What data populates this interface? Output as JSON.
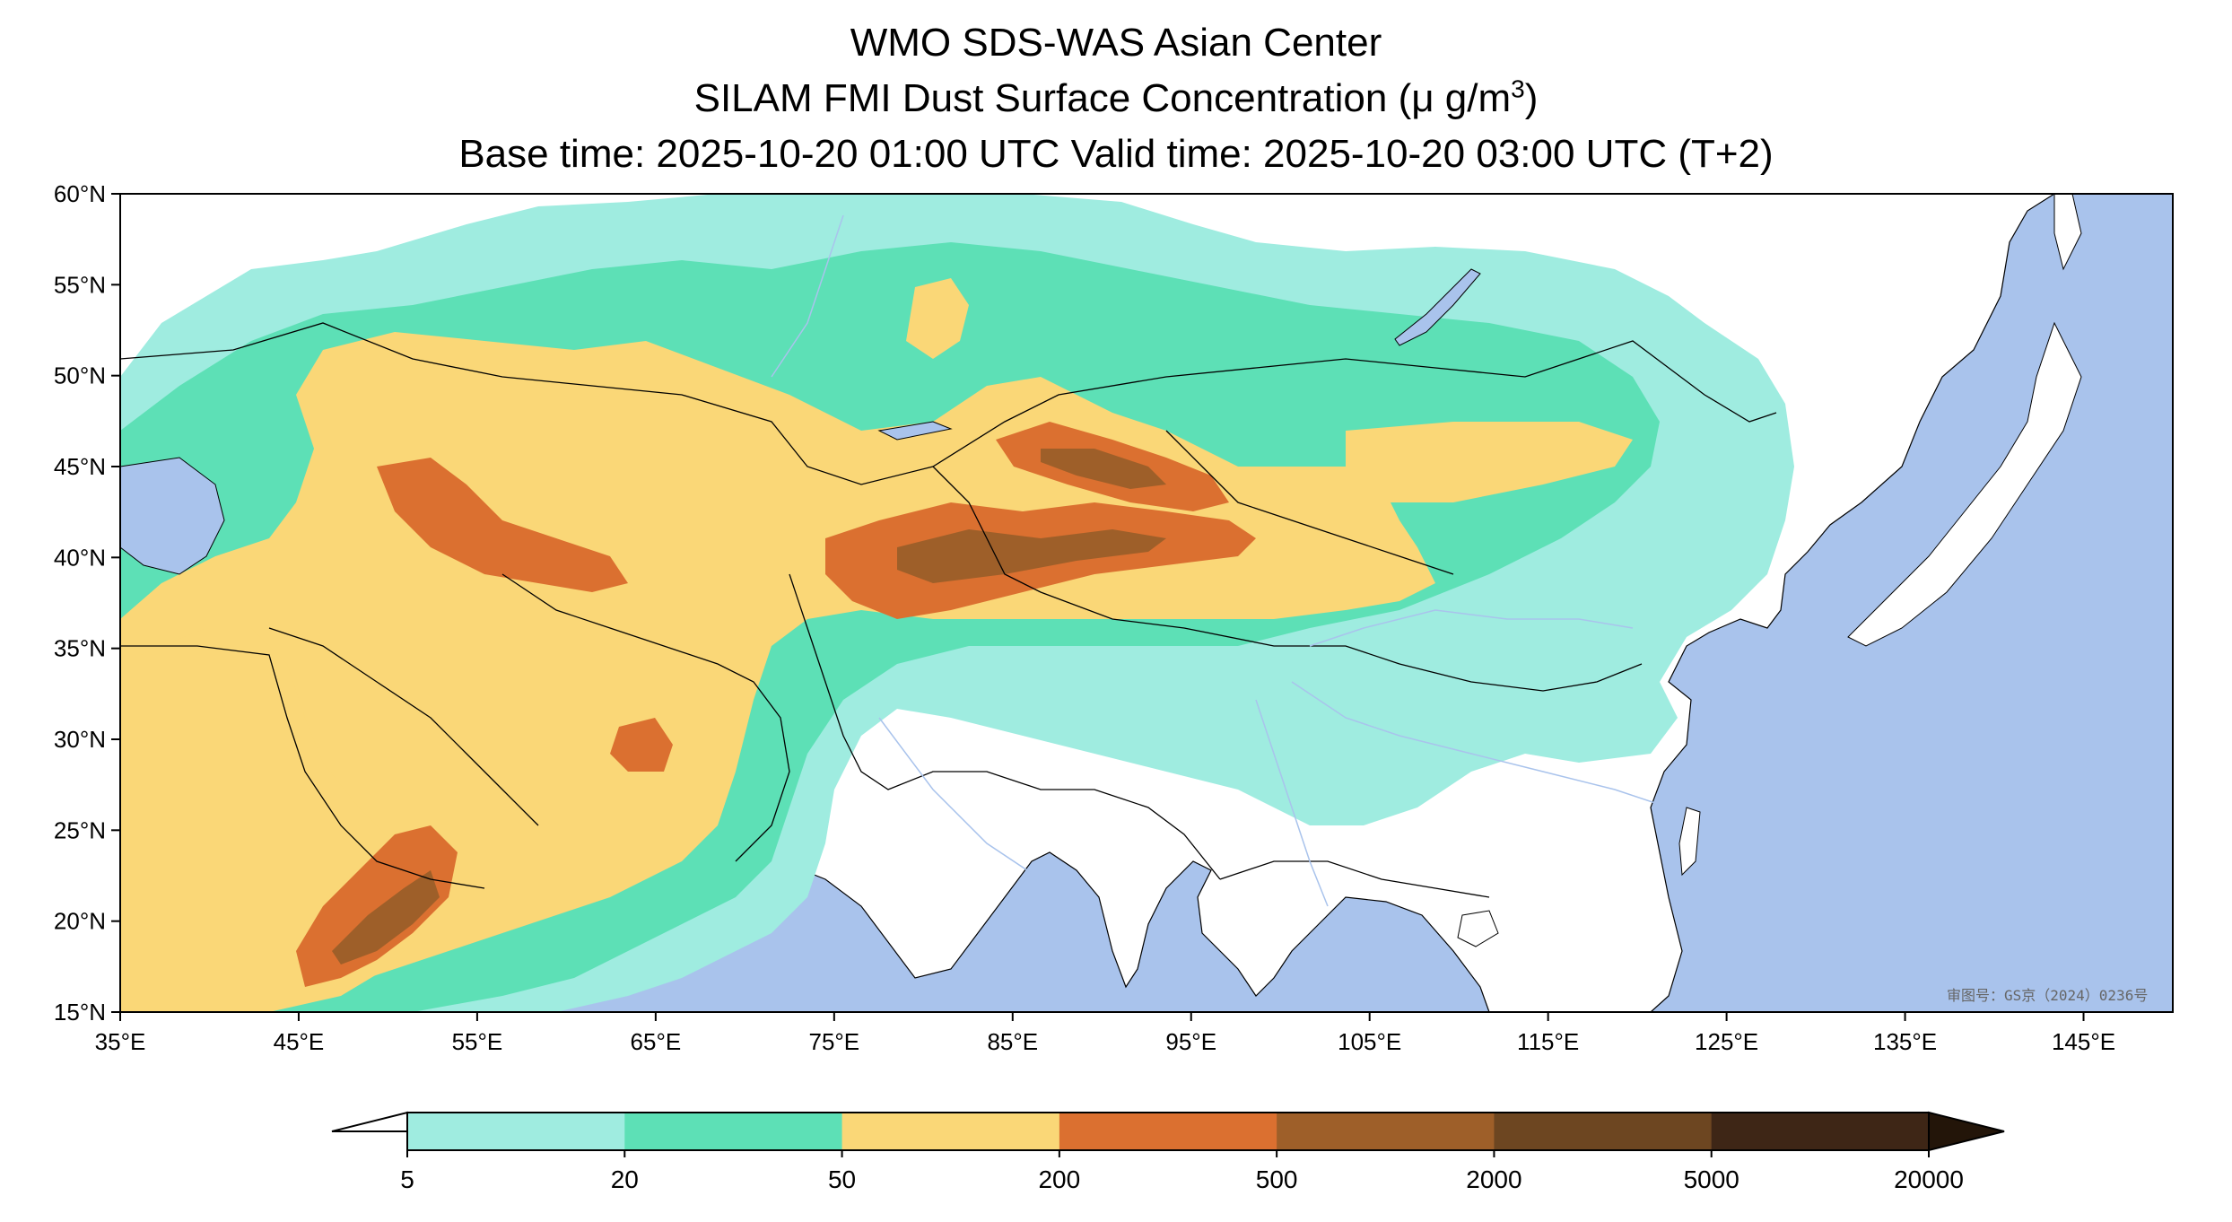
{
  "header": {
    "line1": "WMO SDS-WAS Asian Center",
    "line2_prefix": "SILAM FMI Dust Surface Concentration (",
    "line2_unit": "μ g/m",
    "line2_sup": "3",
    "line2_suffix": ")",
    "line3": "Base time: 2025-10-20 01:00 UTC Valid time: 2025-10-20 03:00 UTC (T+2)"
  },
  "map": {
    "lat_labels": [
      "60°N",
      "55°N",
      "50°N",
      "45°N",
      "40°N",
      "35°N",
      "30°N",
      "25°N",
      "20°N",
      "15°N"
    ],
    "lon_labels": [
      "35°E",
      "45°E",
      "55°E",
      "65°E",
      "75°E",
      "85°E",
      "95°E",
      "105°E",
      "115°E",
      "125°E",
      "135°E",
      "145°E"
    ],
    "stamp": "审图号：GS京（2024）0236号",
    "colors": {
      "ocean": "#a9c3ec",
      "land": "#ffffff",
      "border": "#000000",
      "river": "#a9c3ec"
    }
  },
  "colorbar": {
    "levels": [
      "5",
      "20",
      "50",
      "200",
      "500",
      "2000",
      "5000",
      "20000"
    ],
    "colors": [
      "#9fece0",
      "#5de0b6",
      "#fad777",
      "#db7030",
      "#9e5f29",
      "#6d4621",
      "#3e2616"
    ],
    "under_color": "#ffffff",
    "over_color": "#231509"
  }
}
